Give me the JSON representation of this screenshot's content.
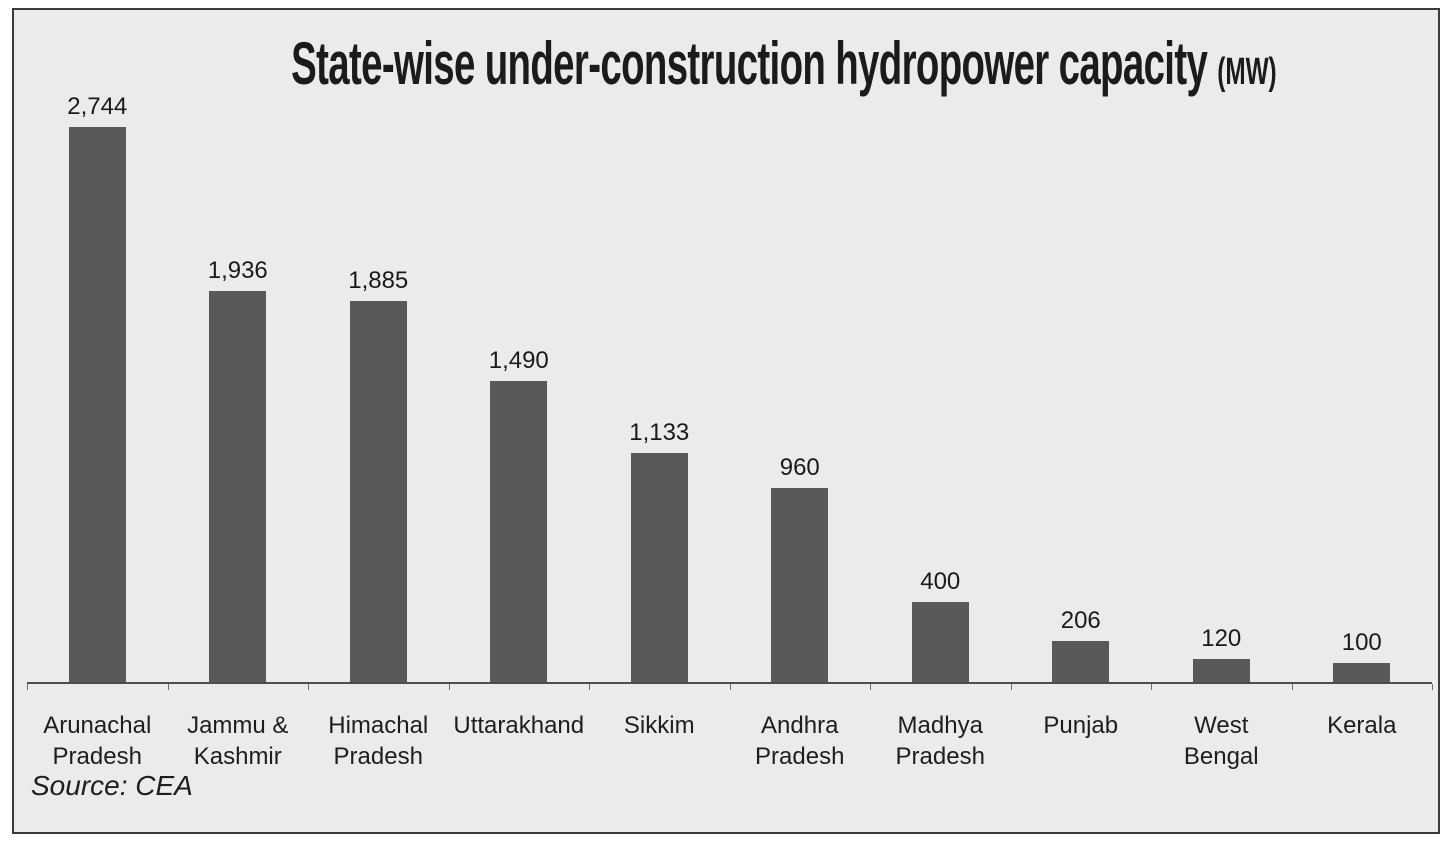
{
  "chart": {
    "title_main": "State-wise under-construction hydropower capacity",
    "title_unit": "(MW)",
    "source": "Source: CEA"
  },
  "colors": {
    "bar": "#595959",
    "panel_background": "#ebebeb",
    "panel_border": "#3b3b3b",
    "axis": "#4d4d4d",
    "text": "#1a1a1a"
  },
  "chart_data": {
    "type": "bar",
    "title": "State-wise under-construction hydropower capacity (MW)",
    "unit": "MW",
    "source": "CEA",
    "categories": [
      "Arunachal Pradesh",
      "Jammu & Kashmir",
      "Himachal Pradesh",
      "Uttarakhand",
      "Sikkim",
      "Andhra Pradesh",
      "Madhya Pradesh",
      "Punjab",
      "West Bengal",
      "Kerala"
    ],
    "categories_display": [
      "Arunachal\nPradesh",
      "Jammu &\nKashmir",
      "Himachal\nPradesh",
      "Uttarakhand",
      "Sikkim",
      "Andhra\nPradesh",
      "Madhya\nPradesh",
      "Punjab",
      "West\nBengal",
      "Kerala"
    ],
    "values": [
      2744,
      1936,
      1885,
      1490,
      1133,
      960,
      400,
      206,
      120,
      100
    ],
    "values_display": [
      "2,744",
      "1,936",
      "1,885",
      "1,490",
      "1,133",
      "960",
      "400",
      "206",
      "120",
      "100"
    ],
    "xlabel": "",
    "ylabel": "",
    "ylim": [
      0,
      2744
    ],
    "grid": false,
    "legend": false,
    "data_labels": true
  }
}
